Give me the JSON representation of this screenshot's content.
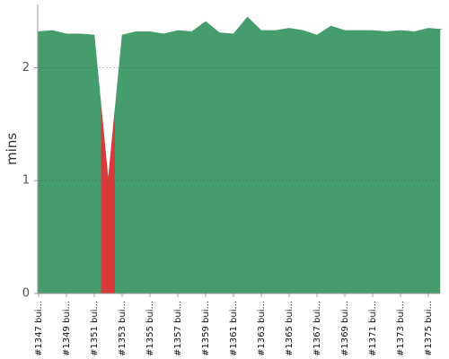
{
  "chart_data": {
    "type": "area",
    "ylabel": "mins",
    "categories": [
      "#1347 bui...",
      null,
      "#1349 bui...",
      null,
      "#1351 bui...",
      null,
      "#1353 bui...",
      null,
      "#1355 bui...",
      null,
      "#1357 bui...",
      null,
      "#1359 bui...",
      null,
      "#1361 bui...",
      null,
      "#1363 bui...",
      null,
      "#1365 bui...",
      null,
      "#1367 bui...",
      null,
      "#1369 bui...",
      null,
      "#1371 bui...",
      null,
      "#1373 bui...",
      null,
      "#1375 bui...",
      null
    ],
    "values": [
      2.32,
      2.33,
      2.3,
      2.3,
      2.29,
      1.01,
      2.29,
      2.32,
      2.32,
      2.3,
      2.33,
      2.32,
      2.41,
      2.31,
      2.3,
      2.45,
      2.33,
      2.33,
      2.35,
      2.33,
      2.29,
      2.37,
      2.33,
      2.33,
      2.33,
      2.32,
      2.33,
      2.32,
      2.35,
      2.34
    ],
    "colors": [
      "#459c6c",
      "#459c6c",
      "#459c6c",
      "#459c6c",
      "#459c6c",
      "#d83a3a",
      "#459c6c",
      "#459c6c",
      "#459c6c",
      "#459c6c",
      "#459c6c",
      "#459c6c",
      "#459c6c",
      "#459c6c",
      "#459c6c",
      "#459c6c",
      "#459c6c",
      "#459c6c",
      "#459c6c",
      "#459c6c",
      "#459c6c",
      "#459c6c",
      "#459c6c",
      "#459c6c",
      "#459c6c",
      "#459c6c",
      "#459c6c",
      "#459c6c",
      "#459c6c",
      "#459c6c"
    ],
    "ylim": [
      0,
      2.56
    ],
    "yticks": [
      0,
      1,
      2
    ],
    "grid": true
  }
}
